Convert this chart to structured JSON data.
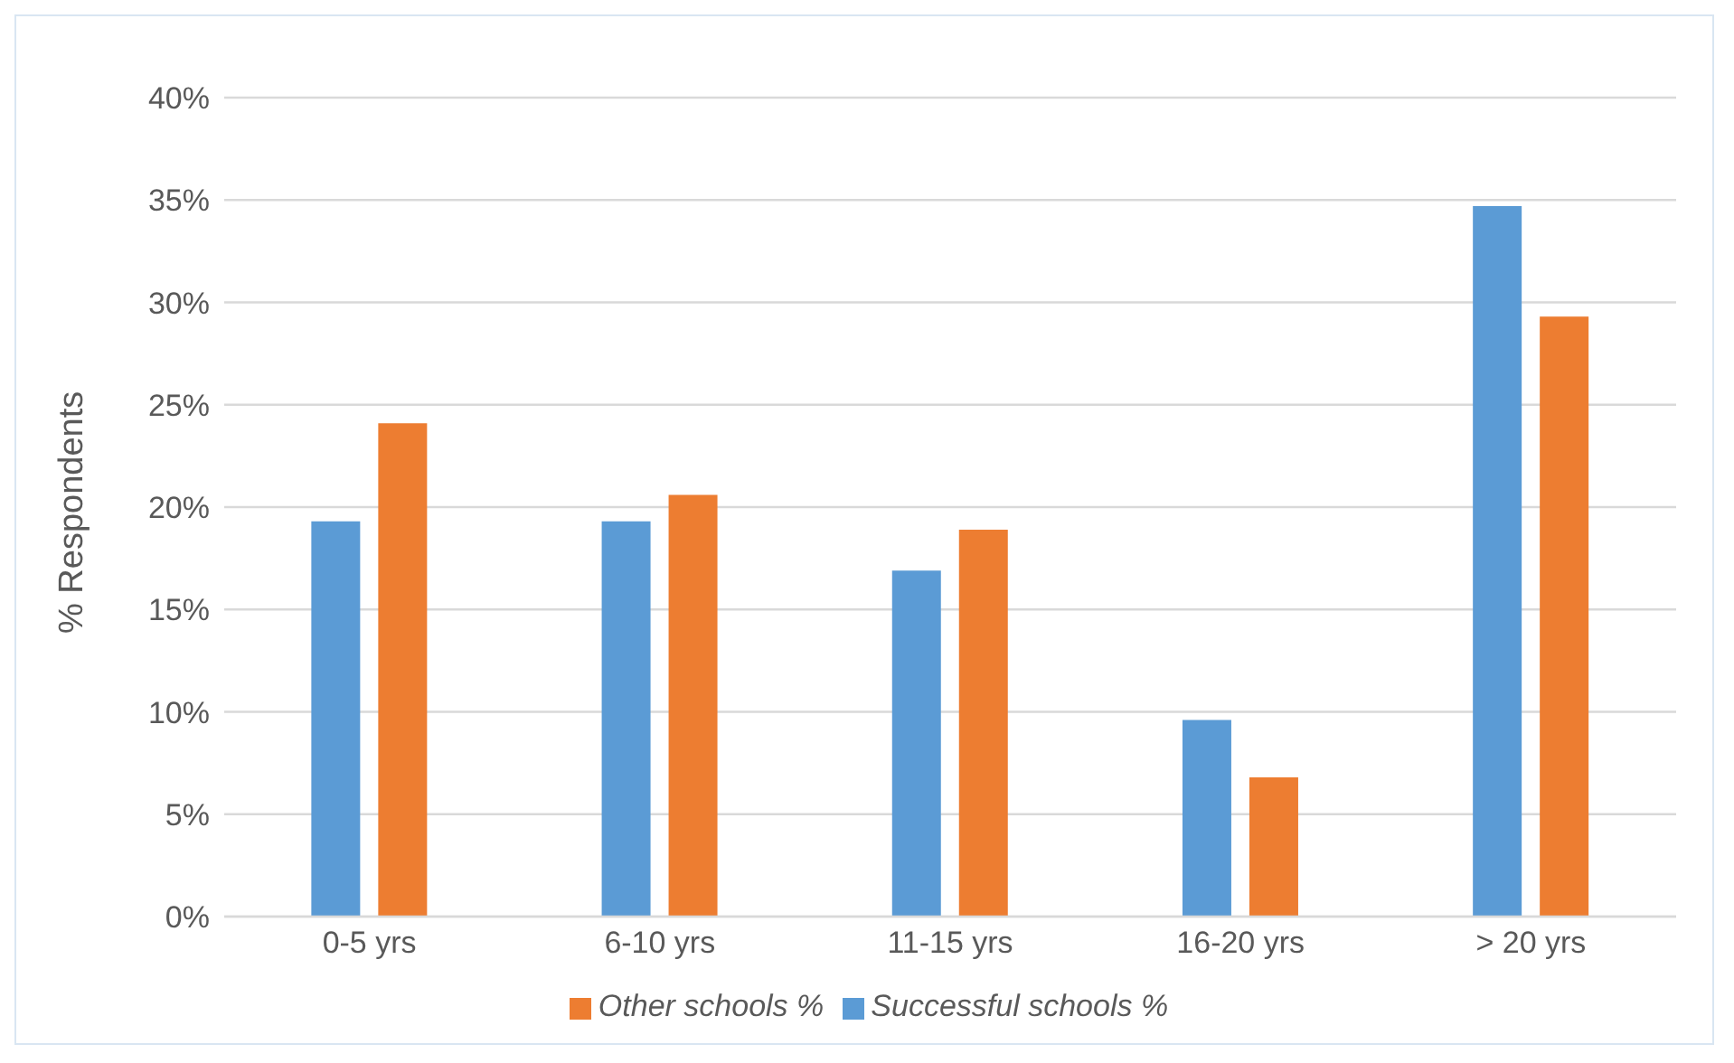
{
  "chart_data": {
    "type": "bar",
    "ylabel": "% Respondents",
    "categories": [
      "0-5 yrs",
      "6-10 yrs",
      "11-15 yrs",
      "16-20 yrs",
      "> 20 yrs"
    ],
    "series": [
      {
        "name": "Successful schools %",
        "color": "#5b9bd5",
        "values": [
          19.3,
          19.3,
          16.9,
          9.6,
          34.7
        ]
      },
      {
        "name": "Other schools %",
        "color": "#ed7d31",
        "values": [
          24.1,
          20.6,
          18.9,
          6.8,
          29.3
        ]
      }
    ],
    "ylim": [
      0,
      40
    ],
    "yticks": [
      {
        "value": 0,
        "label": "0%"
      },
      {
        "value": 5,
        "label": "5%"
      },
      {
        "value": 10,
        "label": "10%"
      },
      {
        "value": 15,
        "label": "15%"
      },
      {
        "value": 20,
        "label": "20%"
      },
      {
        "value": 25,
        "label": "25%"
      },
      {
        "value": 30,
        "label": "30%"
      },
      {
        "value": 35,
        "label": "35%"
      },
      {
        "value": 40,
        "label": "40%"
      }
    ],
    "grid": "y",
    "legend": "bottom"
  }
}
